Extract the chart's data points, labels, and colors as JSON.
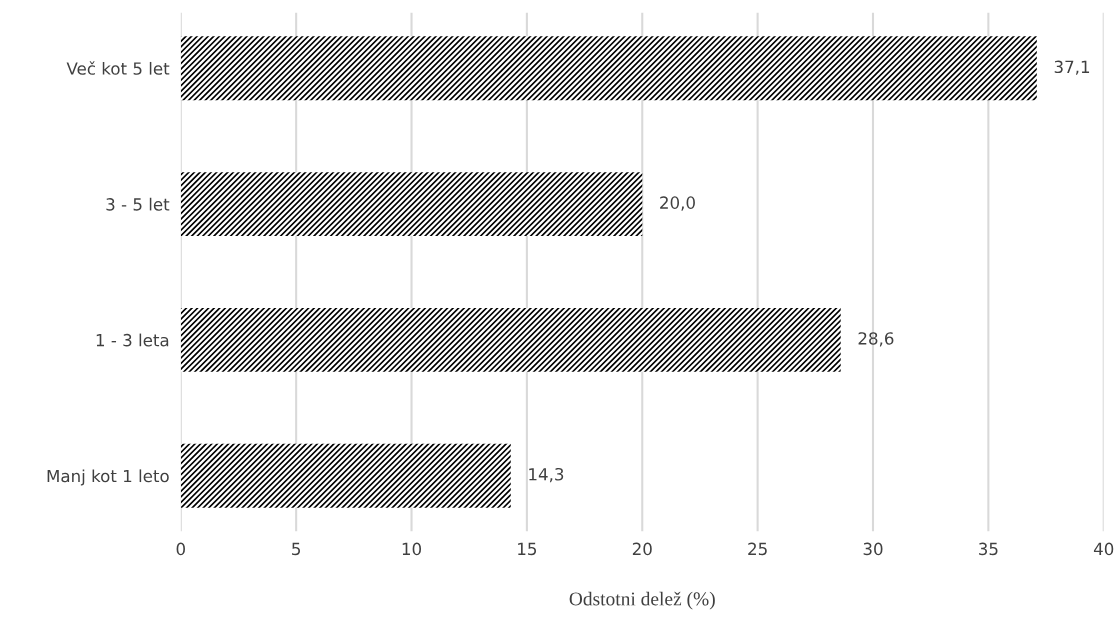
{
  "chart_data": {
    "type": "bar",
    "orientation": "horizontal",
    "xlabel": "Odstotni delež (%)",
    "categories": [
      "Več kot 5 let",
      "3 - 5 let",
      "1 - 3 leta",
      "Manj kot 1 leto"
    ],
    "values": [
      37.1,
      20.0,
      28.6,
      14.3
    ],
    "value_labels": [
      "37,1",
      "20,0",
      "28,6",
      "14,3"
    ],
    "color": "#000000",
    "xlim": [
      0,
      40
    ],
    "xticks": [
      0,
      5,
      10,
      15,
      20,
      25,
      30,
      35,
      40
    ],
    "grid": "x"
  }
}
